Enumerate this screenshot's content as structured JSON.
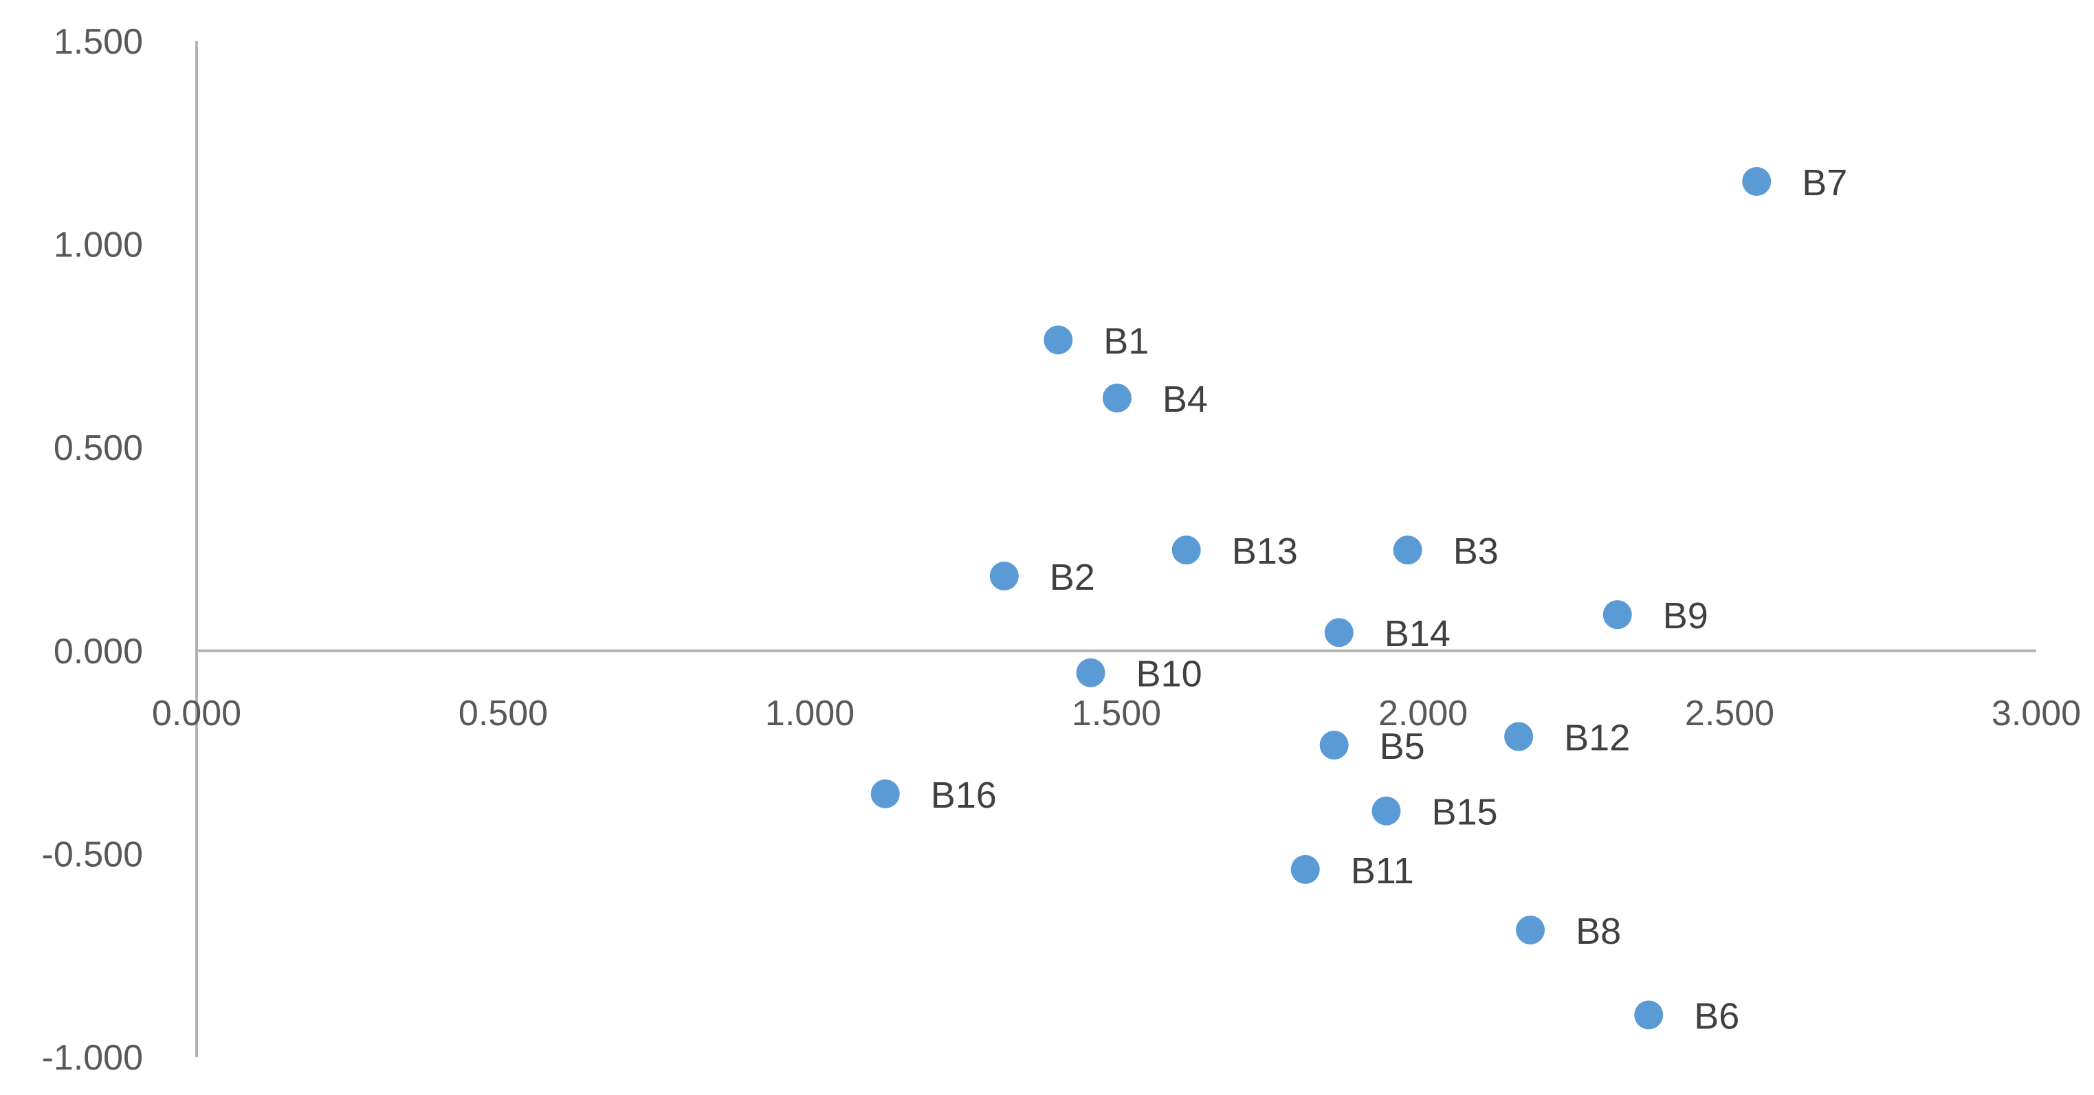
{
  "chart_data": {
    "type": "scatter",
    "title": "",
    "xlabel": "",
    "ylabel": "",
    "xlim": [
      0,
      3
    ],
    "ylim": [
      -1,
      1.5
    ],
    "x_ticks": [
      "0.000",
      "0.500",
      "1.000",
      "1.500",
      "2.000",
      "2.500",
      "3.000"
    ],
    "x_tick_values": [
      0,
      0.5,
      1,
      1.5,
      2,
      2.5,
      3
    ],
    "y_ticks": [
      "1.500",
      "1.000",
      "0.500",
      "0.000",
      "-0.500",
      "-1.000"
    ],
    "y_tick_values": [
      1.5,
      1,
      0.5,
      0,
      -0.5,
      -1
    ],
    "grid": false,
    "legend": "none",
    "marker_color": "#5b9bd5",
    "axis_color": "#b3b3b3",
    "points": [
      {
        "label": "B1",
        "x": 1.405,
        "y": 0.765
      },
      {
        "label": "B2",
        "x": 1.317,
        "y": 0.184
      },
      {
        "label": "B3",
        "x": 1.975,
        "y": 0.248
      },
      {
        "label": "B4",
        "x": 1.501,
        "y": 0.622
      },
      {
        "label": "B5",
        "x": 1.855,
        "y": -0.232
      },
      {
        "label": "B6",
        "x": 2.368,
        "y": -0.896
      },
      {
        "label": "B7",
        "x": 2.544,
        "y": 1.155
      },
      {
        "label": "B8",
        "x": 2.175,
        "y": -0.687
      },
      {
        "label": "B9",
        "x": 2.317,
        "y": 0.089
      },
      {
        "label": "B10",
        "x": 1.458,
        "y": -0.054
      },
      {
        "label": "B11",
        "x": 1.808,
        "y": -0.538
      },
      {
        "label": "B12",
        "x": 2.156,
        "y": -0.211
      },
      {
        "label": "B13",
        "x": 1.614,
        "y": 0.248
      },
      {
        "label": "B14",
        "x": 1.863,
        "y": 0.045
      },
      {
        "label": "B15",
        "x": 1.94,
        "y": -0.394
      },
      {
        "label": "B16",
        "x": 1.123,
        "y": -0.352
      }
    ]
  }
}
